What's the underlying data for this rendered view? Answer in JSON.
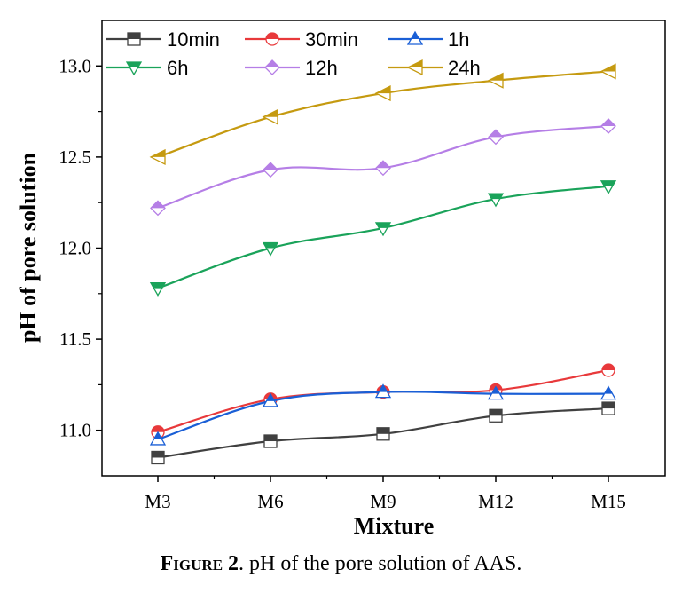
{
  "chart_data": {
    "type": "line",
    "categories": [
      "M3",
      "M6",
      "M9",
      "M12",
      "M15"
    ],
    "xlabel": "Mixture",
    "ylabel": "pH of pore solution",
    "ylim": [
      10.75,
      13.25
    ],
    "yticks": [
      "11.0",
      "11.5",
      "12.0",
      "12.5",
      "13.0"
    ],
    "ytick_values": [
      11.0,
      11.5,
      12.0,
      12.5,
      13.0
    ],
    "legend_placement": "top-left",
    "series": [
      {
        "name": "10min",
        "color": "#404040",
        "marker": "square",
        "values": [
          10.85,
          10.94,
          10.98,
          11.08,
          11.12
        ]
      },
      {
        "name": "30min",
        "color": "#e8393b",
        "marker": "circle",
        "values": [
          10.99,
          11.17,
          11.21,
          11.22,
          11.33
        ]
      },
      {
        "name": "1h",
        "color": "#1a5fd6",
        "marker": "triangle-up",
        "values": [
          10.95,
          11.16,
          11.21,
          11.2,
          11.2
        ]
      },
      {
        "name": "6h",
        "color": "#1aa35a",
        "marker": "triangle-down",
        "values": [
          11.78,
          12.0,
          12.11,
          12.27,
          12.34
        ]
      },
      {
        "name": "12h",
        "color": "#b57ee6",
        "marker": "diamond",
        "values": [
          12.22,
          12.43,
          12.44,
          12.61,
          12.67
        ]
      },
      {
        "name": "24h",
        "color": "#c59a10",
        "marker": "triangle-left",
        "values": [
          12.5,
          12.72,
          12.85,
          12.92,
          12.97
        ]
      }
    ]
  },
  "caption": {
    "figure_label": "Figure 2",
    "text": ". pH of the pore solution of AAS."
  }
}
